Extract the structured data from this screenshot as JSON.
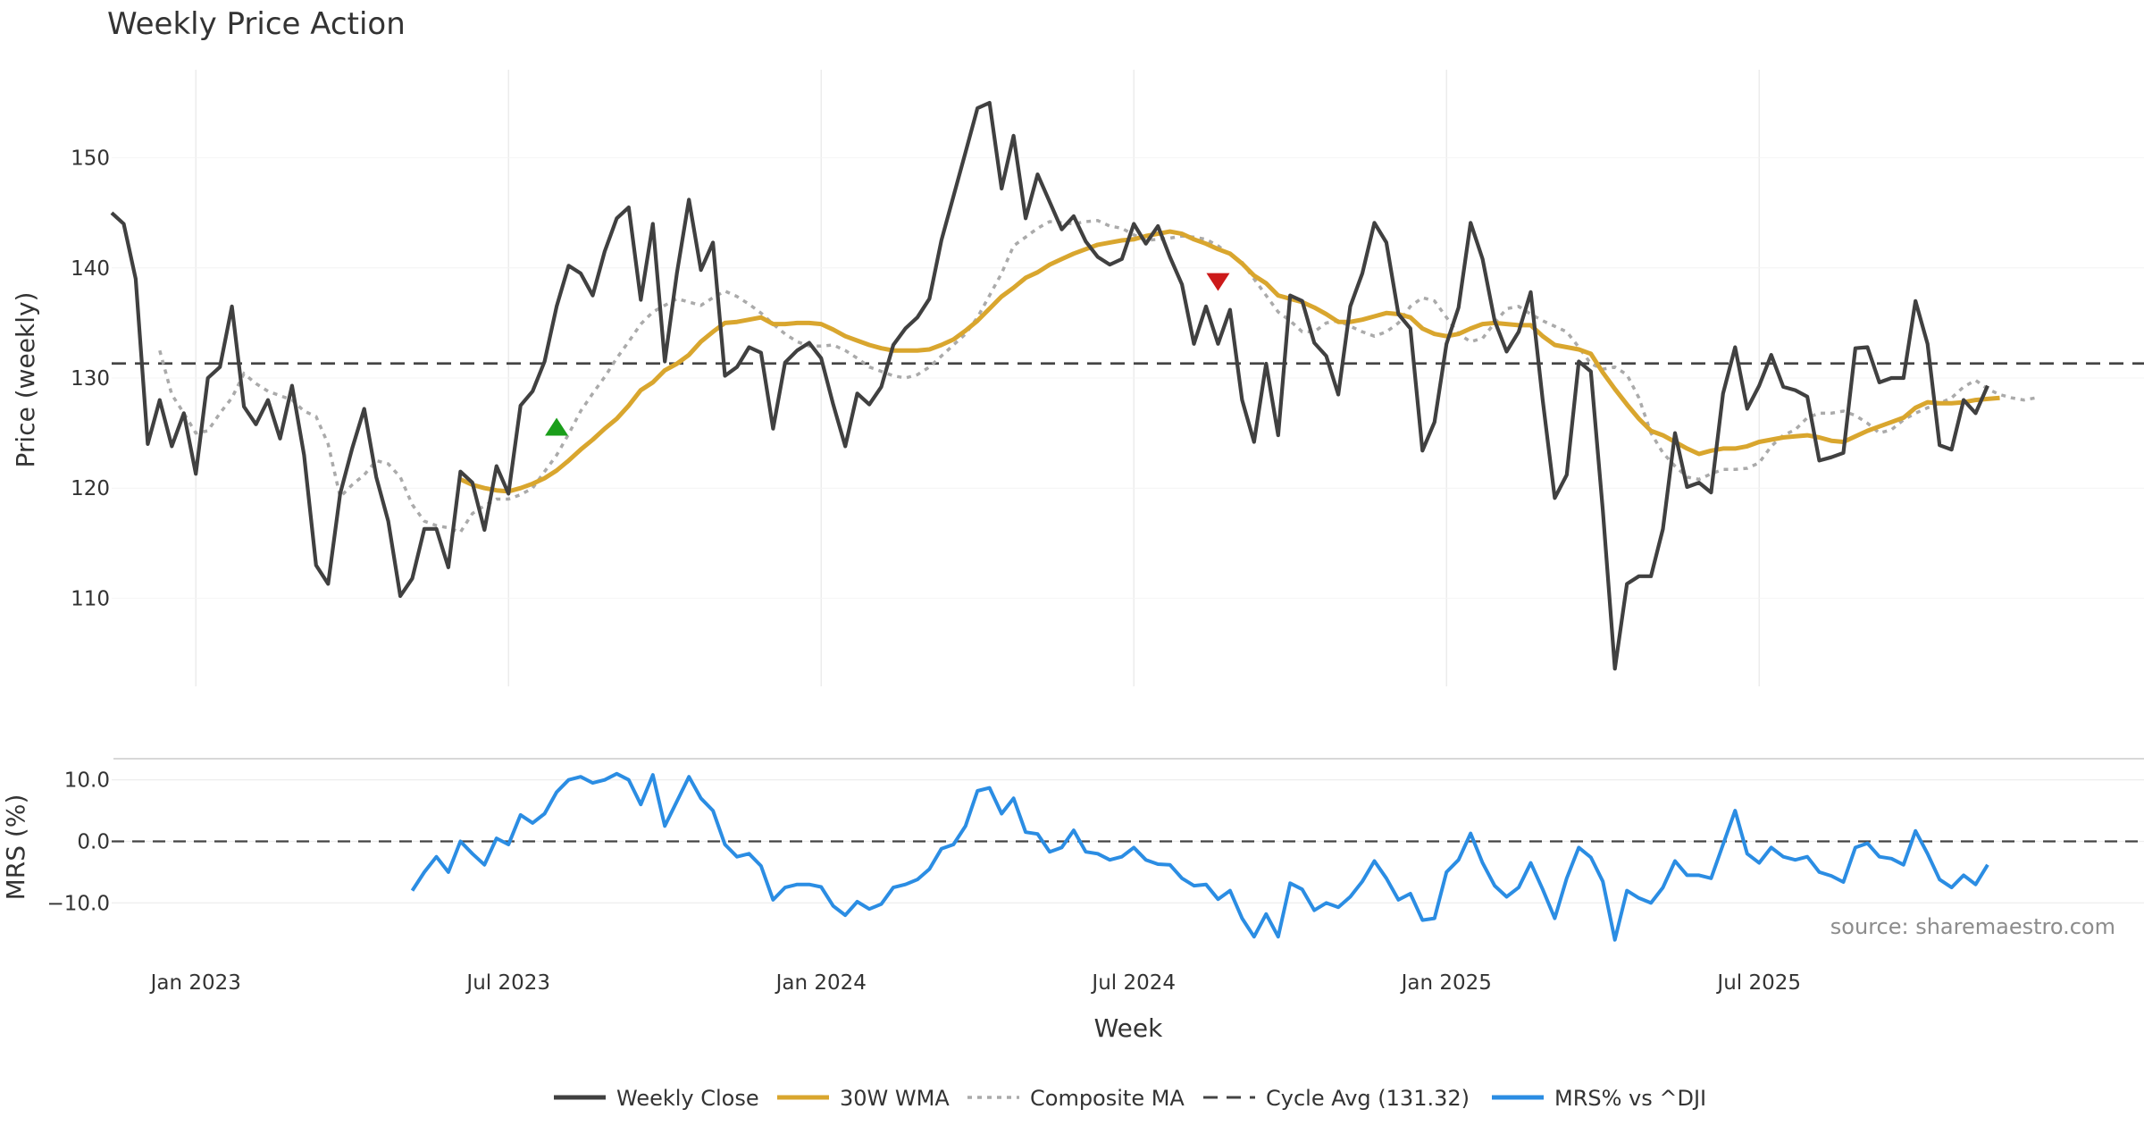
{
  "chart_data": {
    "type": "line",
    "title": "Weekly Price Action",
    "xlabel": "Week",
    "source": "source: sharemaestro.com",
    "x_ticks": [
      "Jan 2023",
      "Jul 2023",
      "Jan 2024",
      "Jul 2024",
      "Jan 2025",
      "Jul 2025"
    ],
    "x_range_weeks": [
      0,
      169
    ],
    "x_tick_weeks": [
      7,
      33,
      59,
      85,
      111,
      137
    ],
    "price_panel": {
      "ylabel": "Price (weekly)",
      "ylim": [
        102,
        158
      ],
      "yticks": [
        "110",
        "120",
        "130",
        "140",
        "150"
      ],
      "ytick_values": [
        110,
        120,
        130,
        140,
        150
      ],
      "cycle_avg": 131.32,
      "buy_signal": {
        "week": 37,
        "value": 125.5
      },
      "sell_signal": {
        "week": 92,
        "value": 138.8
      },
      "weekly_close": [
        145.0,
        144.0,
        139.0,
        124.0,
        128.0,
        123.8,
        126.8,
        121.3,
        130.0,
        131.0,
        136.5,
        127.4,
        125.8,
        128.0,
        124.5,
        129.3,
        123.0,
        113.0,
        111.3,
        119.5,
        123.6,
        127.2,
        121.0,
        117.0,
        110.2,
        111.8,
        116.3,
        116.3,
        112.8,
        121.5,
        120.5,
        116.2,
        122.0,
        119.5,
        127.5,
        128.8,
        131.5,
        136.5,
        140.2,
        139.5,
        137.5,
        141.5,
        144.5,
        145.5,
        137.1,
        144.0,
        131.5,
        139.5,
        146.2,
        139.8,
        142.3,
        130.2,
        131.0,
        132.8,
        132.3,
        125.4,
        131.4,
        132.5,
        133.2,
        131.8,
        127.6,
        123.8,
        128.6,
        127.6,
        129.2,
        133.0,
        134.5,
        135.5,
        137.2,
        142.5,
        146.5,
        150.5,
        154.5,
        155.0,
        147.2,
        152.0,
        144.5,
        148.5,
        146.0,
        143.5,
        144.7,
        142.4,
        141.0,
        140.3,
        140.8,
        144.0,
        142.2,
        143.8,
        141.0,
        138.5,
        133.1,
        136.5,
        133.1,
        136.2,
        128.0,
        124.2,
        131.3,
        124.8,
        137.5,
        137.0,
        133.2,
        132.0,
        128.5,
        136.5,
        139.5,
        144.1,
        142.3,
        135.8,
        134.5,
        123.4,
        126.0,
        133.1,
        136.4,
        144.1,
        140.8,
        135.2,
        132.4,
        134.2,
        137.8,
        128.0,
        119.1,
        121.2,
        131.5,
        130.6,
        118.0,
        103.6,
        111.3,
        112.0,
        112.0,
        116.3,
        125.0,
        120.1,
        120.5,
        119.6,
        128.6,
        132.8,
        127.2,
        129.3,
        132.1,
        129.2,
        128.9,
        128.3,
        122.5,
        122.8,
        123.2,
        132.7,
        132.8,
        129.6,
        130.0,
        130.0,
        137.0,
        133.1,
        123.9,
        123.5,
        128.0,
        126.8,
        129.3
      ],
      "wma_30w": {
        "start_week": 29,
        "values": [
          120.8,
          120.3,
          120.0,
          119.8,
          119.7,
          120.0,
          120.4,
          120.9,
          121.6,
          122.5,
          123.5,
          124.4,
          125.4,
          126.3,
          127.5,
          128.9,
          129.6,
          130.7,
          131.3,
          132.1,
          133.3,
          134.2,
          135.0,
          135.1,
          135.3,
          135.5,
          134.9,
          134.9,
          135.0,
          135.0,
          134.9,
          134.4,
          133.8,
          133.4,
          133.0,
          132.7,
          132.5,
          132.5,
          132.5,
          132.6,
          133.0,
          133.5,
          134.3,
          135.2,
          136.3,
          137.4,
          138.2,
          139.1,
          139.6,
          140.3,
          140.8,
          141.3,
          141.7,
          142.1,
          142.3,
          142.5,
          142.6,
          142.9,
          143.1,
          143.3,
          143.1,
          142.6,
          142.2,
          141.7,
          141.3,
          140.4,
          139.3,
          138.6,
          137.5,
          137.2,
          136.9,
          136.4,
          135.8,
          135.1,
          135.1,
          135.3,
          135.6,
          135.9,
          135.8,
          135.5,
          134.5,
          134.0,
          133.8,
          134.0,
          134.5,
          134.9,
          135.0,
          134.9,
          134.8,
          134.8,
          133.8,
          133.0,
          132.8,
          132.6,
          132.2,
          130.5,
          129.0,
          127.6,
          126.3,
          125.2,
          124.8,
          124.2,
          123.6,
          123.1,
          123.4,
          123.6,
          123.6,
          123.8,
          124.2,
          124.4,
          124.6,
          124.7,
          124.8,
          124.6,
          124.3,
          124.2,
          124.7,
          125.2,
          125.6,
          126.0,
          126.4,
          127.3,
          127.8,
          127.7,
          127.7,
          127.8,
          128.0,
          128.1,
          128.2
        ]
      },
      "composite_ma": {
        "start_week": 4,
        "values": [
          132.5,
          128.5,
          126.8,
          125.0,
          125.2,
          126.8,
          128.2,
          130.4,
          129.5,
          128.8,
          128.4,
          128.0,
          127.0,
          126.5,
          124.0,
          119.2,
          120.3,
          121.2,
          122.5,
          122.2,
          121.0,
          118.5,
          117.0,
          116.6,
          116.4,
          116.0,
          117.7,
          118.4,
          119.0,
          119.0,
          119.4,
          120.0,
          121.5,
          123.0,
          124.9,
          127.0,
          128.6,
          130.1,
          131.8,
          133.3,
          134.9,
          136.0,
          136.6,
          137.2,
          136.9,
          136.6,
          137.3,
          137.9,
          137.4,
          136.7,
          135.9,
          134.9,
          134.0,
          133.3,
          132.9,
          132.9,
          133.0,
          132.5,
          131.8,
          131.0,
          130.6,
          130.2,
          130.0,
          130.3,
          131.0,
          132.0,
          133.0,
          134.0,
          135.5,
          137.5,
          139.5,
          142.0,
          142.8,
          143.6,
          144.2,
          144.1,
          144.0,
          144.2,
          144.3,
          143.8,
          143.6,
          143.0,
          142.5,
          142.6,
          142.7,
          142.9,
          142.8,
          142.6,
          142.0,
          141.2,
          140.5,
          139.0,
          137.5,
          136.0,
          135.2,
          134.2,
          134.2,
          135.0,
          135.2,
          134.7,
          134.2,
          133.8,
          134.2,
          135.0,
          136.5,
          137.3,
          137.0,
          135.5,
          134.0,
          133.3,
          133.6,
          135.0,
          136.3,
          136.5,
          135.8,
          135.2,
          134.7,
          134.2,
          132.8,
          131.3,
          130.8,
          131.0,
          130.3,
          128.2,
          125.0,
          123.2,
          122.0,
          121.0,
          120.8,
          121.3,
          121.7,
          121.7,
          121.8,
          122.3,
          123.8,
          124.8,
          125.3,
          126.4,
          126.8,
          126.8,
          127.0,
          126.6,
          125.9,
          125.0,
          125.3,
          126.2,
          126.8,
          127.3,
          127.7,
          128.2,
          129.2,
          129.8,
          129.0,
          128.5,
          128.2,
          128.0,
          128.2
        ]
      }
    },
    "mrs_panel": {
      "ylabel": "MRS (%)",
      "ylim": [
        -17.5,
        13.0
      ],
      "yticks": [
        "10.0",
        "0.0",
        "−10.0"
      ],
      "ytick_values": [
        10,
        0,
        -10
      ],
      "baseline": 0,
      "start_week": 25,
      "values": [
        -8.0,
        -5.0,
        -2.5,
        -5.0,
        0.0,
        -2.0,
        -3.8,
        0.5,
        -0.5,
        4.3,
        3.0,
        4.5,
        8.0,
        10.0,
        10.5,
        9.5,
        10.0,
        11.0,
        10.0,
        6.0,
        10.8,
        2.5,
        6.5,
        10.5,
        7.0,
        5.0,
        -0.5,
        -2.5,
        -2.0,
        -4.0,
        -9.5,
        -7.5,
        -7.0,
        -7.0,
        -7.4,
        -10.5,
        -12.0,
        -9.8,
        -11.0,
        -10.2,
        -7.5,
        -7.0,
        -6.2,
        -4.5,
        -1.2,
        -0.5,
        2.5,
        8.2,
        8.7,
        4.5,
        7.0,
        1.5,
        1.2,
        -1.7,
        -1.0,
        1.8,
        -1.7,
        -2.0,
        -3.0,
        -2.5,
        -1.0,
        -3.0,
        -3.7,
        -3.8,
        -6.0,
        -7.2,
        -7.0,
        -9.4,
        -8.0,
        -12.5,
        -15.5,
        -11.8,
        -15.5,
        -6.8,
        -7.8,
        -11.2,
        -10.0,
        -10.7,
        -9.0,
        -6.5,
        -3.2,
        -6.0,
        -9.5,
        -8.5,
        -12.8,
        -12.5,
        -5.0,
        -3.0,
        1.3,
        -3.5,
        -7.2,
        -9.0,
        -7.5,
        -3.5,
        -7.8,
        -12.5,
        -6.0,
        -1.0,
        -2.6,
        -6.5,
        -16.0,
        -8.0,
        -9.2,
        -10.0,
        -7.5,
        -3.2,
        -5.5,
        -5.5,
        -6.0,
        -0.5,
        5.0,
        -2.0,
        -3.5,
        -1.0,
        -2.5,
        -3.0,
        -2.5,
        -5.0,
        -5.6,
        -6.6,
        -1.0,
        -0.3,
        -2.5,
        -2.8,
        -3.8,
        1.7,
        -2.0,
        -6.2,
        -7.5,
        -5.5,
        -7.0,
        -3.8
      ]
    },
    "series": [
      {
        "name": "Weekly Close",
        "color": "#404040",
        "style": "solid"
      },
      {
        "name": "30W WMA",
        "color": "#d9a62e",
        "style": "solid"
      },
      {
        "name": "Composite MA",
        "color": "#aaaaaa",
        "style": "dotted"
      },
      {
        "name": "Cycle Avg (131.32)",
        "color": "#444444",
        "style": "dashed"
      },
      {
        "name": "MRS% vs ^DJI",
        "color": "#2b8de3",
        "style": "solid"
      }
    ],
    "signal_colors": {
      "buy": "#1a9e1a",
      "sell": "#cc1a1a"
    }
  }
}
